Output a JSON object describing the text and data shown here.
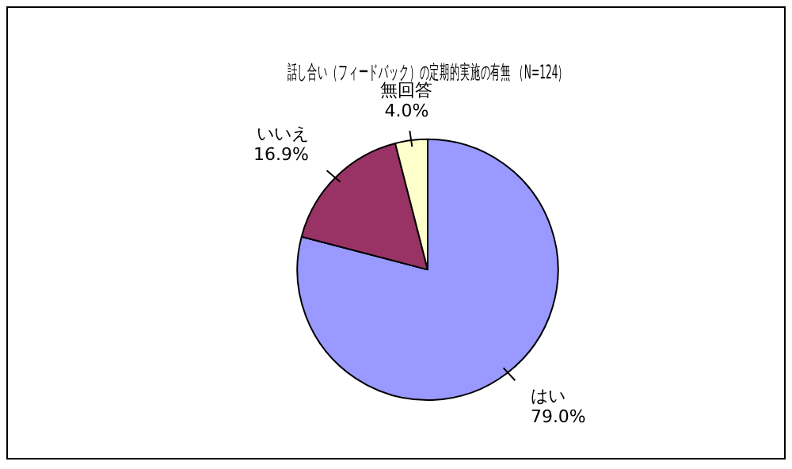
{
  "chart_data": {
    "type": "pie",
    "title": "話し合い（フィードバック）の定期的実施の有無 （N=124）",
    "categories": [
      "はい",
      "いいえ",
      "無回答"
    ],
    "values": [
      79.0,
      16.9,
      4.0
    ],
    "value_labels": [
      "79.0%",
      "16.9%",
      "4.0%"
    ],
    "colors": [
      "#9999ff",
      "#993366",
      "#ffffcc"
    ],
    "legend": false
  }
}
